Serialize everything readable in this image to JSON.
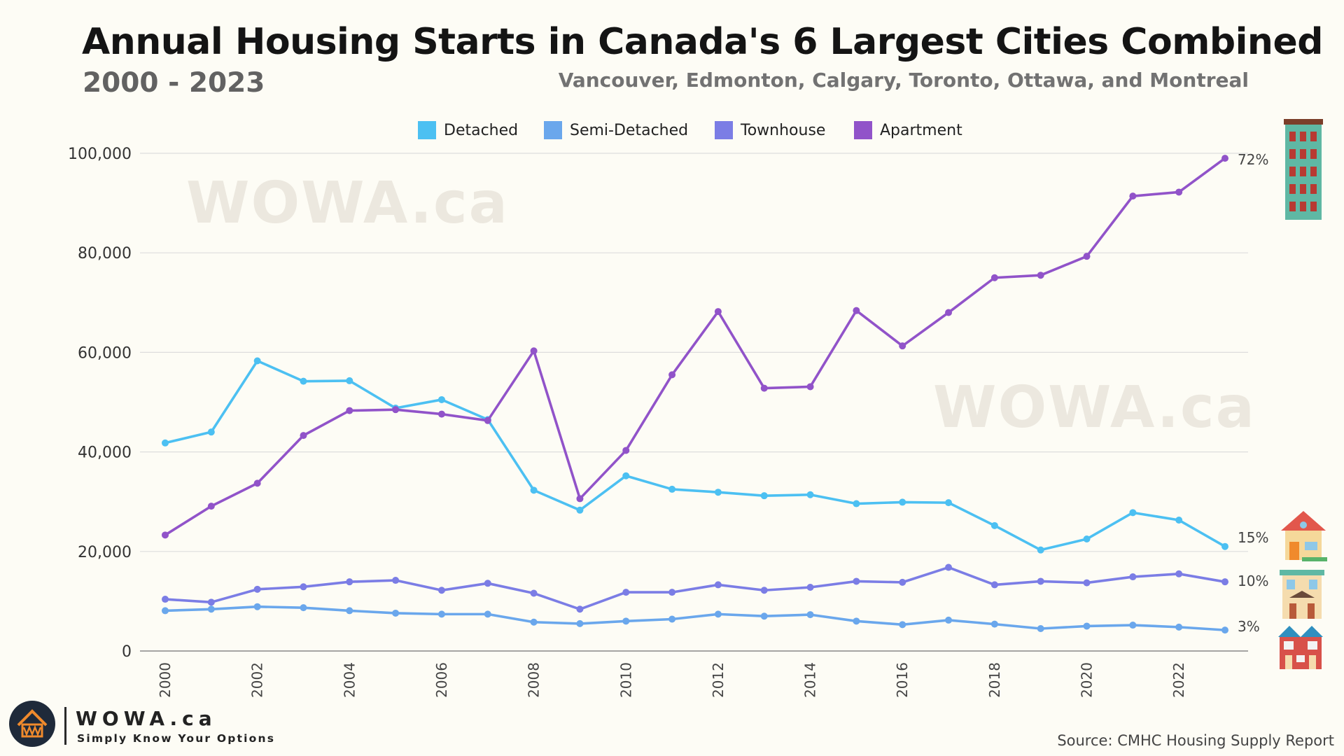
{
  "header": {
    "title": "Annual Housing Starts in Canada's 6 Largest Cities Combined",
    "subtitle": "2000 - 2023",
    "cities": "Vancouver, Edmonton, Calgary, Toronto, Ottawa, and Montreal"
  },
  "watermark": "WOWA.ca",
  "brand": {
    "name": "WOWA.ca",
    "tagline": "Simply Know Your Options",
    "logo_icon": "wow-house-logo-icon"
  },
  "source": "Source: CMHC Housing Supply Report",
  "colors": {
    "detached": "#4cc0f2",
    "semi": "#6aa7ec",
    "townhouse": "#7b7de5",
    "apartment": "#9153c9",
    "grid": "#dddddd",
    "axis": "#888888"
  },
  "chart_data": {
    "type": "line",
    "title": "Annual Housing Starts in Canada's 6 Largest Cities Combined",
    "subtitle": "2000 - 2023",
    "xlabel": "",
    "ylabel": "",
    "x": [
      2000,
      2001,
      2002,
      2003,
      2004,
      2005,
      2006,
      2007,
      2008,
      2009,
      2010,
      2011,
      2012,
      2013,
      2014,
      2015,
      2016,
      2017,
      2018,
      2019,
      2020,
      2021,
      2022,
      2023
    ],
    "x_tick_labels": [
      "2000",
      "2002",
      "2004",
      "2006",
      "2008",
      "2010",
      "2012",
      "2014",
      "2016",
      "2018",
      "2020",
      "2022"
    ],
    "y_tick_labels": [
      "0",
      "20,000",
      "40,000",
      "60,000",
      "80,000",
      "100,000"
    ],
    "ylim": [
      0,
      100000
    ],
    "grid": true,
    "legend_position": "top-center",
    "series": [
      {
        "name": "Detached",
        "color": "#4cc0f2",
        "end_label": "15%",
        "icon": "detached-house-icon",
        "values": [
          41800,
          44000,
          58300,
          54200,
          54300,
          48800,
          50500,
          46500,
          32300,
          28300,
          35200,
          32500,
          31900,
          31200,
          31400,
          29600,
          29900,
          29800,
          25200,
          20300,
          22500,
          27800,
          26300,
          21000
        ]
      },
      {
        "name": "Semi-Detached",
        "color": "#6aa7ec",
        "end_label": "3%",
        "icon": "semi-detached-house-icon",
        "values": [
          8100,
          8400,
          8900,
          8700,
          8100,
          7600,
          7400,
          7400,
          5800,
          5500,
          6000,
          6400,
          7400,
          7000,
          7300,
          6000,
          5300,
          6200,
          5400,
          4500,
          5000,
          5200,
          4800,
          4200
        ]
      },
      {
        "name": "Townhouse",
        "color": "#7b7de5",
        "end_label": "10%",
        "icon": "townhouse-icon",
        "values": [
          10400,
          9800,
          12400,
          12900,
          13900,
          14200,
          12200,
          13600,
          11600,
          8400,
          11800,
          11800,
          13300,
          12200,
          12800,
          14000,
          13800,
          16800,
          13300,
          14000,
          13700,
          14900,
          15500,
          13900
        ]
      },
      {
        "name": "Apartment",
        "color": "#9153c9",
        "end_label": "72%",
        "icon": "apartment-building-icon",
        "values": [
          23300,
          29100,
          33700,
          43300,
          48300,
          48500,
          47600,
          46300,
          60300,
          30600,
          40300,
          55500,
          68200,
          52800,
          53100,
          68400,
          61300,
          68000,
          75000,
          75500,
          79300,
          91400,
          92200,
          99000
        ]
      }
    ]
  }
}
